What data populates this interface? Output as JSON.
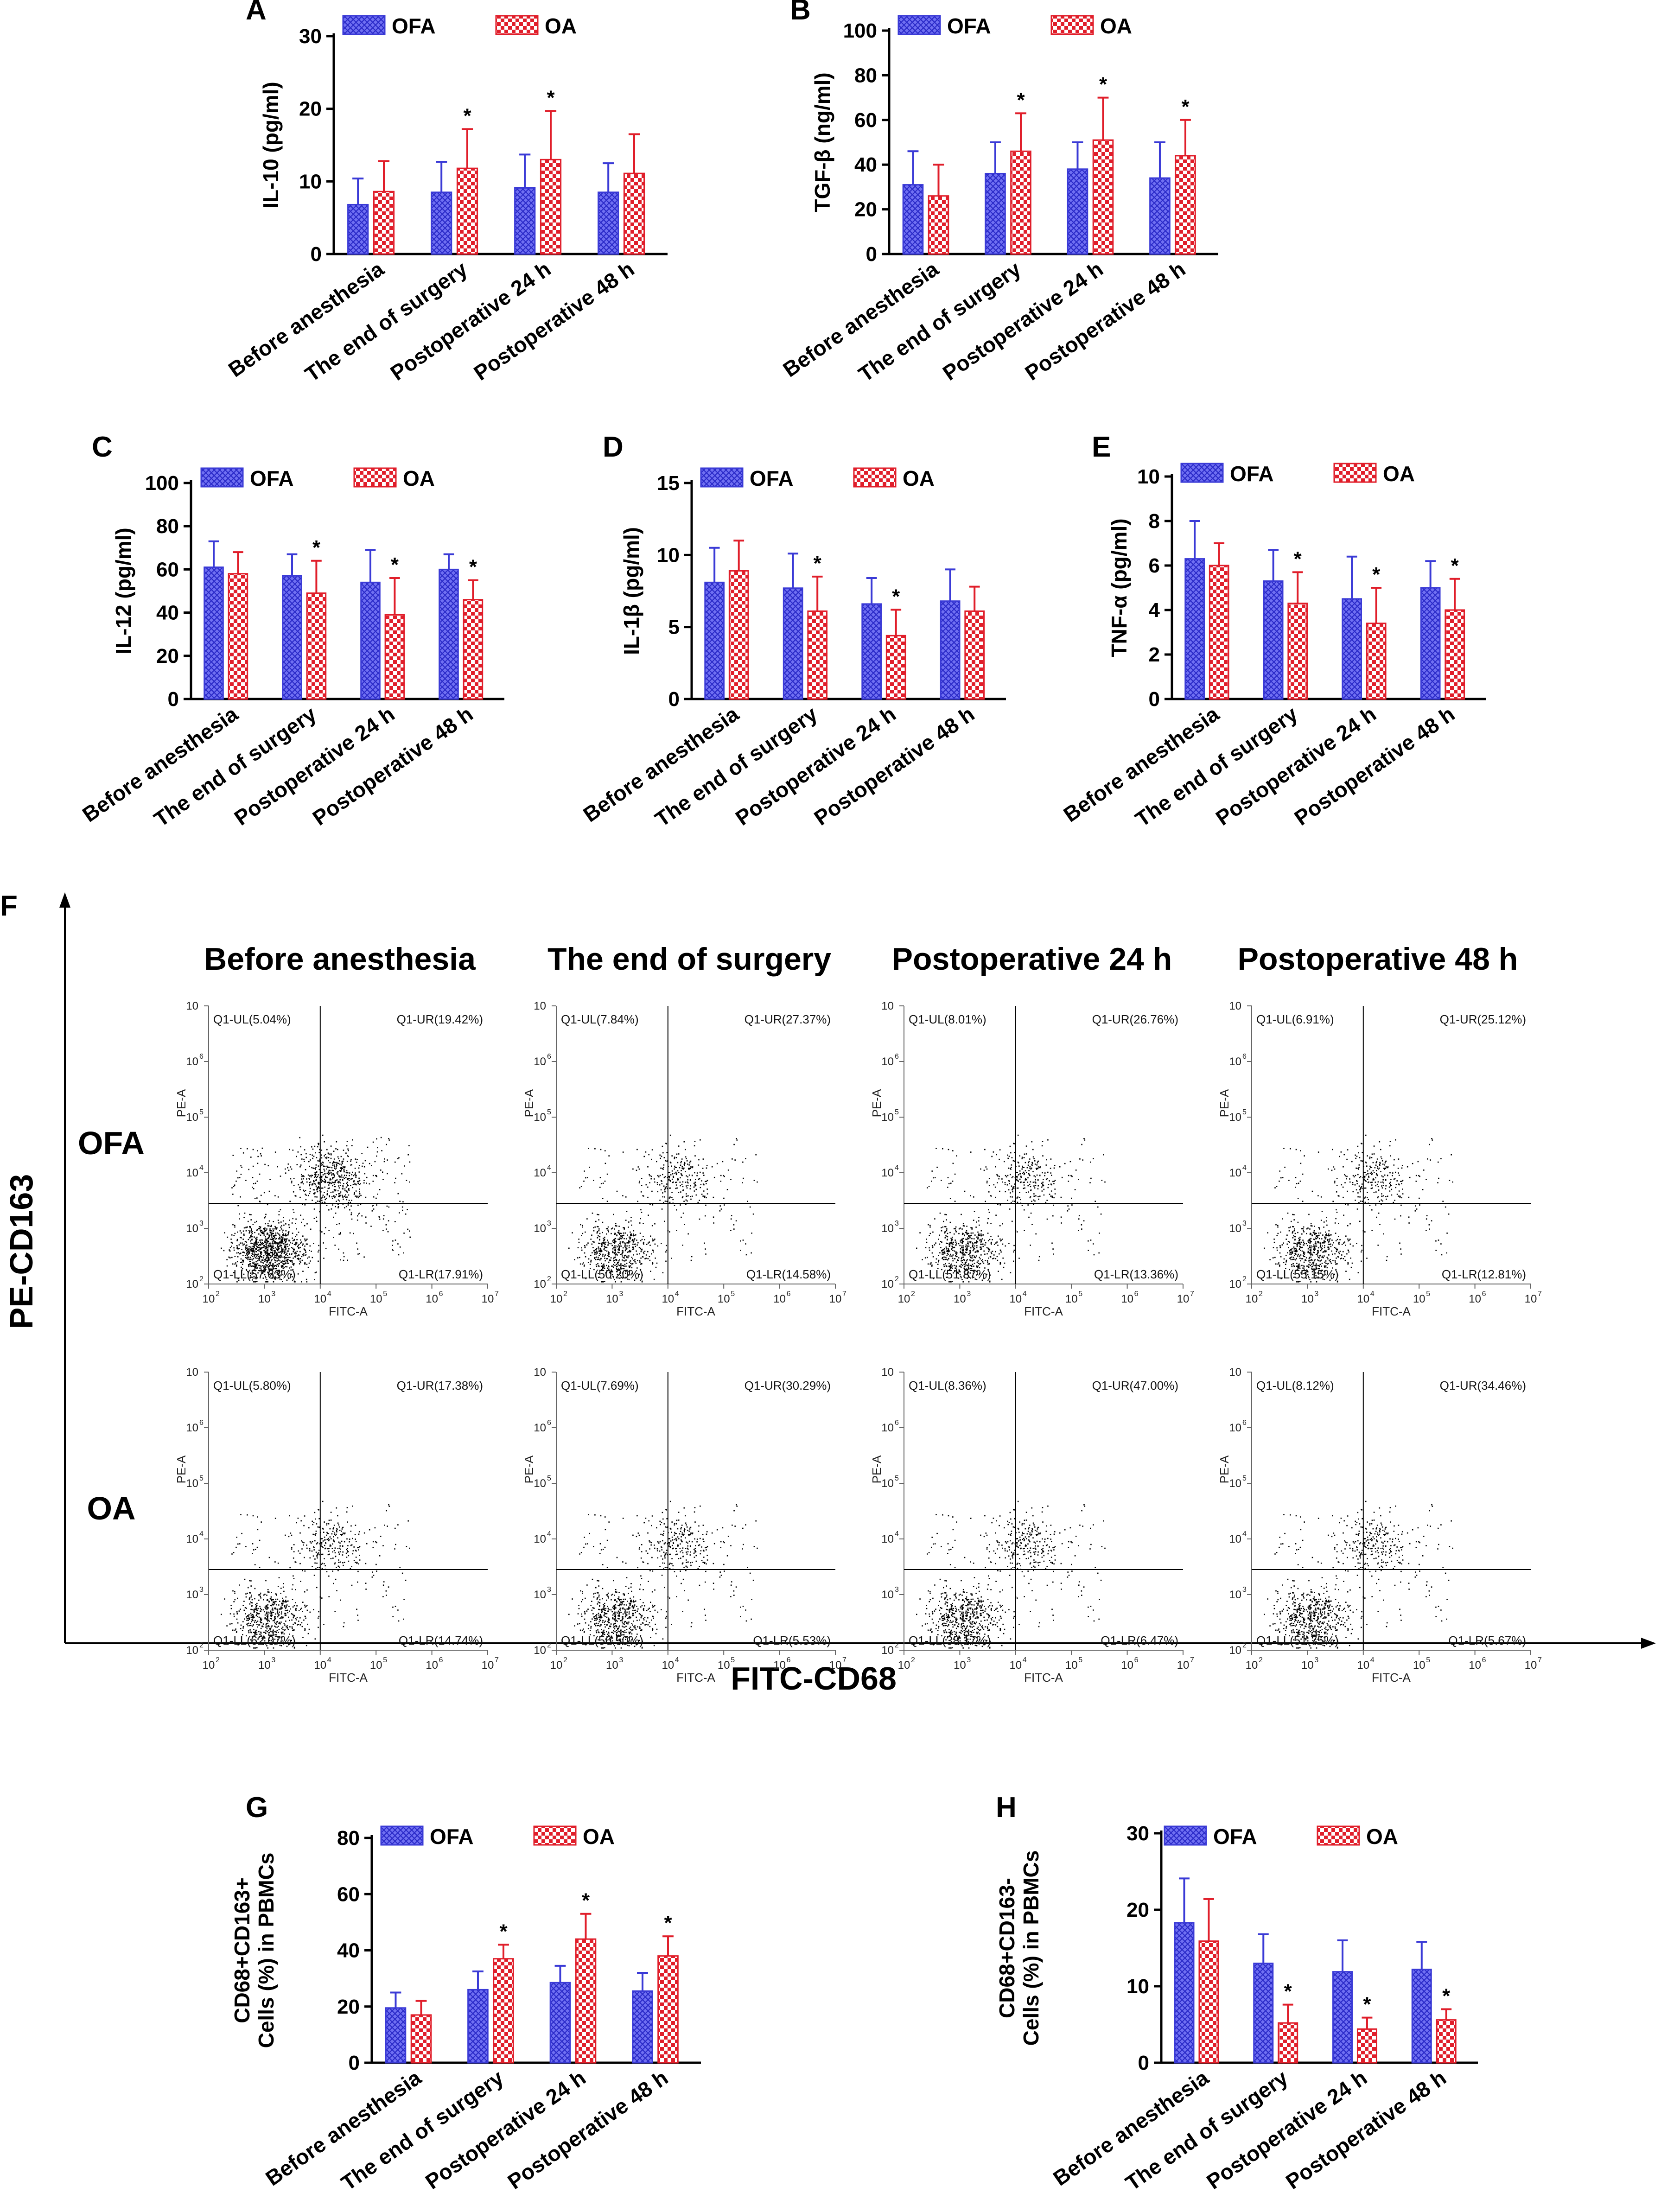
{
  "colors": {
    "ofa": "#3a3ad6",
    "oa": "#e01e2a",
    "ofa_fill": "#6b6bf0",
    "axis": "#000000"
  },
  "series_names": [
    "OFA",
    "OA"
  ],
  "chart_data": [
    {
      "type": "bar",
      "panel": "A",
      "ylabel": "IL-10 (pg/ml)",
      "ylim": [
        0,
        30
      ],
      "yticks": [
        0,
        10,
        20,
        30
      ],
      "categories": [
        "Before anesthesia",
        "The end of surgery",
        "Postoperative 24 h",
        "Postoperative 48 h"
      ],
      "series": [
        {
          "name": "OFA",
          "values": [
            6.8,
            8.5,
            9.1,
            8.5
          ],
          "errors": [
            3.6,
            4.2,
            4.6,
            4.0
          ],
          "sig": [
            "",
            "",
            "",
            ""
          ]
        },
        {
          "name": "OA",
          "values": [
            8.6,
            11.8,
            13.0,
            11.1
          ],
          "errors": [
            4.2,
            5.4,
            6.7,
            5.4
          ],
          "sig": [
            "",
            "*",
            "*",
            ""
          ]
        }
      ]
    },
    {
      "type": "bar",
      "panel": "B",
      "ylabel": "TGF-β (ng/ml)",
      "ylim": [
        0,
        100
      ],
      "yticks": [
        0,
        20,
        40,
        60,
        80,
        100
      ],
      "categories": [
        "Before anesthesia",
        "The end of surgery",
        "Postoperative 24 h",
        "Postoperative 48 h"
      ],
      "series": [
        {
          "name": "OFA",
          "values": [
            31,
            36,
            38,
            34
          ],
          "errors": [
            15,
            14,
            12,
            16
          ],
          "sig": [
            "",
            "",
            "",
            ""
          ]
        },
        {
          "name": "OA",
          "values": [
            26,
            46,
            51,
            44
          ],
          "errors": [
            14,
            17,
            19,
            16
          ],
          "sig": [
            "",
            "*",
            "*",
            "*"
          ]
        }
      ]
    },
    {
      "type": "bar",
      "panel": "C",
      "ylabel": "IL-12 (pg/ml)",
      "ylim": [
        0,
        100
      ],
      "yticks": [
        0,
        20,
        40,
        60,
        80,
        100
      ],
      "categories": [
        "Before anesthesia",
        "The end of surgery",
        "Postoperative 24 h",
        "Postoperative 48 h"
      ],
      "series": [
        {
          "name": "OFA",
          "values": [
            61,
            57,
            54,
            60
          ],
          "errors": [
            12,
            10,
            15,
            7
          ],
          "sig": [
            "",
            "",
            "",
            ""
          ]
        },
        {
          "name": "OA",
          "values": [
            58,
            49,
            39,
            46
          ],
          "errors": [
            10,
            15,
            17,
            9
          ],
          "sig": [
            "",
            "*",
            "*",
            "*"
          ]
        }
      ]
    },
    {
      "type": "bar",
      "panel": "D",
      "ylabel": "IL-1β (pg/ml)",
      "ylim": [
        0,
        15
      ],
      "yticks": [
        0,
        5,
        10,
        15
      ],
      "categories": [
        "Before anesthesia",
        "The end of surgery",
        "Postoperative 24 h",
        "Postoperative 48 h"
      ],
      "series": [
        {
          "name": "OFA",
          "values": [
            8.1,
            7.7,
            6.6,
            6.8
          ],
          "errors": [
            2.4,
            2.4,
            1.8,
            2.2
          ],
          "sig": [
            "",
            "",
            "",
            ""
          ]
        },
        {
          "name": "OA",
          "values": [
            8.9,
            6.1,
            4.4,
            6.1
          ],
          "errors": [
            2.1,
            2.4,
            1.8,
            1.7
          ],
          "sig": [
            "",
            "*",
            "*",
            ""
          ]
        }
      ]
    },
    {
      "type": "bar",
      "panel": "E",
      "ylabel": "TNF-α (pg/ml)",
      "ylim": [
        0,
        10
      ],
      "yticks": [
        0,
        2,
        4,
        6,
        8,
        10
      ],
      "categories": [
        "Before anesthesia",
        "The end of surgery",
        "Postoperative 24 h",
        "Postoperative 48 h"
      ],
      "series": [
        {
          "name": "OFA",
          "values": [
            6.3,
            5.3,
            4.5,
            5.0
          ],
          "errors": [
            1.7,
            1.4,
            1.9,
            1.2
          ],
          "sig": [
            "",
            "",
            "",
            ""
          ]
        },
        {
          "name": "OA",
          "values": [
            6.0,
            4.3,
            3.4,
            4.0
          ],
          "errors": [
            1.0,
            1.4,
            1.6,
            1.4
          ],
          "sig": [
            "",
            "*",
            "*",
            "*"
          ]
        }
      ]
    },
    {
      "type": "bar",
      "panel": "G",
      "ylabel": "CD68+CD163+ Cells (%) in PBMCs",
      "ylabel_lines": [
        "CD68+CD163+",
        "Cells (%) in PBMCs"
      ],
      "ylim": [
        0,
        80
      ],
      "yticks": [
        0,
        20,
        40,
        60,
        80
      ],
      "categories": [
        "Before anesthesia",
        "The end of surgery",
        "Postoperative 24 h",
        "Postoperative 48 h"
      ],
      "series": [
        {
          "name": "OFA",
          "values": [
            19.5,
            26,
            28.5,
            25.5
          ],
          "errors": [
            5.5,
            6.5,
            6,
            6.5
          ],
          "sig": [
            "",
            "",
            "",
            ""
          ]
        },
        {
          "name": "OA",
          "values": [
            17,
            37,
            44,
            38
          ],
          "errors": [
            5,
            5,
            9,
            7
          ],
          "sig": [
            "",
            "*",
            "*",
            "*"
          ]
        }
      ]
    },
    {
      "type": "bar",
      "panel": "H",
      "ylabel": "CD68+CD163- Cells (%) in PBMCs",
      "ylabel_lines": [
        "CD68+CD163-",
        "Cells (%) in PBMCs"
      ],
      "ylim": [
        0,
        30
      ],
      "yticks": [
        0,
        10,
        20,
        30
      ],
      "categories": [
        "Before anesthesia",
        "The end of surgery",
        "Postoperative 24 h",
        "Postoperative 48 h"
      ],
      "series": [
        {
          "name": "OFA",
          "values": [
            18.3,
            13,
            11.9,
            12.2
          ],
          "errors": [
            5.8,
            3.8,
            4.1,
            3.6
          ],
          "sig": [
            "",
            "",
            "",
            ""
          ]
        },
        {
          "name": "OA",
          "values": [
            15.9,
            5.2,
            4.4,
            5.6
          ],
          "errors": [
            5.5,
            2.4,
            1.5,
            1.4
          ],
          "sig": [
            "",
            "*",
            "*",
            "*"
          ]
        }
      ]
    }
  ],
  "flow": {
    "panel": "F",
    "ylabel": "PE-CD163",
    "xlabel": "FITC-CD68",
    "column_titles": [
      "Before anesthesia",
      "The end of surgery",
      "Postoperative 24 h",
      "Postoperative 48 h"
    ],
    "row_labels": [
      "OFA",
      "OA"
    ],
    "plot_xlabel": "FITC-A",
    "plot_ylabel": "PE-A",
    "decades": [
      2,
      3,
      4,
      5,
      6,
      7
    ],
    "ydecades": [
      2,
      3,
      4,
      5,
      6,
      10
    ],
    "gate_x": 4.0,
    "gate_y": 3.45,
    "plots": [
      [
        {
          "UL": "Q1-UL(5.04%)",
          "UR": "Q1-UR(19.42%)",
          "LL": "Q1-LL(57.63%)",
          "LR": "Q1-LR(17.91%)"
        },
        {
          "UL": "Q1-UL(7.84%)",
          "UR": "Q1-UR(27.37%)",
          "LL": "Q1-LL(50.20%)",
          "LR": "Q1-LR(14.58%)"
        },
        {
          "UL": "Q1-UL(8.01%)",
          "UR": "Q1-UR(26.76%)",
          "LL": "Q1-LL(51.87%)",
          "LR": "Q1-LR(13.36%)"
        },
        {
          "UL": "Q1-UL(6.91%)",
          "UR": "Q1-UR(25.12%)",
          "LL": "Q1-LL(55.15%)",
          "LR": "Q1-LR(12.81%)"
        }
      ],
      [
        {
          "UL": "Q1-UL(5.80%)",
          "UR": "Q1-UR(17.38%)",
          "LL": "Q1-LL(62.07%)",
          "LR": "Q1-LR(14.74%)"
        },
        {
          "UL": "Q1-UL(7.69%)",
          "UR": "Q1-UR(30.29%)",
          "LL": "Q1-LL(56.50%)",
          "LR": "Q1-LR(5.53%)"
        },
        {
          "UL": "Q1-UL(8.36%)",
          "UR": "Q1-UR(47.00%)",
          "LL": "Q1-LL(38.17%)",
          "LR": "Q1-LR(6.47%)"
        },
        {
          "UL": "Q1-UL(8.12%)",
          "UR": "Q1-UR(34.46%)",
          "LL": "Q1-LL(51.75%)",
          "LR": "Q1-LR(5.67%)"
        }
      ]
    ]
  }
}
